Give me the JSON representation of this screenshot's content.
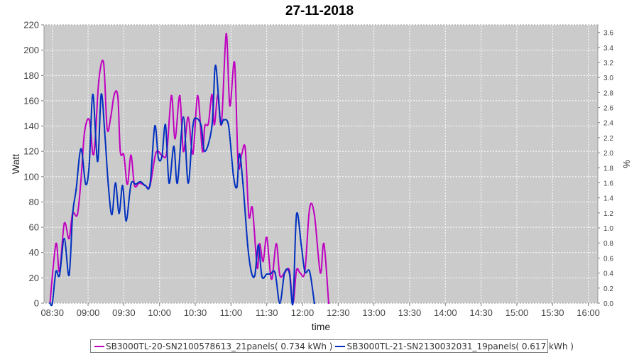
{
  "chart_data": {
    "type": "line",
    "title": "27-11-2018",
    "xlabel": "time",
    "ylabel": "Watt",
    "y2label": "%",
    "ylim": [
      0,
      220
    ],
    "y2lim": [
      0,
      3.7
    ],
    "xlim": [
      "08:23",
      "16:08"
    ],
    "grid": true,
    "plot_background": "#cbcbcb",
    "legend_position": "bottom",
    "x_ticks": [
      "08:30",
      "09:00",
      "09:30",
      "10:00",
      "10:30",
      "11:00",
      "11:30",
      "12:00",
      "12:30",
      "13:00",
      "13:30",
      "14:00",
      "14:30",
      "15:00",
      "15:30",
      "16:00"
    ],
    "y_ticks": [
      0,
      20,
      40,
      60,
      80,
      100,
      120,
      140,
      160,
      180,
      200,
      220
    ],
    "y2_ticks": [
      "0.0",
      "0.2",
      "0.4",
      "0.6",
      "0.8",
      "1.0",
      "1.2",
      "1.4",
      "1.6",
      "1.8",
      "2.0",
      "2.2",
      "2.4",
      "2.6",
      "2.8",
      "3.0",
      "3.2",
      "3.4",
      "3.6"
    ],
    "series": [
      {
        "name": "SB3000TL-20-SN2100578613_21panels( 0.734 kWh )",
        "color": "#c000c0",
        "points": [
          [
            "08:28",
            0
          ],
          [
            "08:33",
            47
          ],
          [
            "08:36",
            25
          ],
          [
            "08:40",
            63
          ],
          [
            "08:44",
            51
          ],
          [
            "08:47",
            71
          ],
          [
            "08:51",
            70
          ],
          [
            "08:54",
            97
          ],
          [
            "08:57",
            135
          ],
          [
            "09:01",
            145
          ],
          [
            "09:04",
            118
          ],
          [
            "09:06",
            129
          ],
          [
            "09:09",
            176
          ],
          [
            "09:13",
            190
          ],
          [
            "09:16",
            138
          ],
          [
            "09:19",
            147
          ],
          [
            "09:22",
            165
          ],
          [
            "09:25",
            163
          ],
          [
            "09:27",
            120
          ],
          [
            "09:30",
            117
          ],
          [
            "09:33",
            94
          ],
          [
            "09:36",
            117
          ],
          [
            "09:39",
            93
          ],
          [
            "09:43",
            95
          ],
          [
            "09:48",
            93
          ],
          [
            "09:52",
            93
          ],
          [
            "09:57",
            119
          ],
          [
            "10:02",
            117
          ],
          [
            "10:06",
            119
          ],
          [
            "10:10",
            164
          ],
          [
            "10:13",
            130
          ],
          [
            "10:17",
            164
          ],
          [
            "10:20",
            120
          ],
          [
            "10:24",
            147
          ],
          [
            "10:28",
            118
          ],
          [
            "10:32",
            164
          ],
          [
            "10:36",
            120
          ],
          [
            "10:38",
            140
          ],
          [
            "10:41",
            142
          ],
          [
            "10:44",
            165
          ],
          [
            "10:46",
            141
          ],
          [
            "10:49",
            165
          ],
          [
            "10:52",
            142
          ],
          [
            "10:56",
            213
          ],
          [
            "10:59",
            156
          ],
          [
            "11:03",
            190
          ],
          [
            "11:06",
            110
          ],
          [
            "11:09",
            118
          ],
          [
            "11:12",
            122
          ],
          [
            "11:15",
            69
          ],
          [
            "11:18",
            75
          ],
          [
            "11:22",
            28
          ],
          [
            "11:24",
            47
          ],
          [
            "11:27",
            33
          ],
          [
            "11:30",
            52
          ],
          [
            "11:34",
            19
          ],
          [
            "11:38",
            47
          ],
          [
            "11:41",
            22
          ],
          [
            "11:45",
            24
          ],
          [
            "11:49",
            26
          ],
          [
            "11:52",
            0
          ],
          [
            "11:55",
            26
          ],
          [
            "11:58",
            24
          ],
          [
            "12:02",
            25
          ],
          [
            "12:06",
            75
          ],
          [
            "12:10",
            70
          ],
          [
            "12:15",
            24
          ],
          [
            "12:18",
            47
          ],
          [
            "12:22",
            0
          ]
        ]
      },
      {
        "name": "SB3000TL-21-SN2130032031_19panels( 0.617 kWh )",
        "color": "#0030c0",
        "points": [
          [
            "08:28",
            0
          ],
          [
            "08:30",
            0
          ],
          [
            "08:33",
            25
          ],
          [
            "08:36",
            22
          ],
          [
            "08:40",
            51
          ],
          [
            "08:44",
            22
          ],
          [
            "08:47",
            70
          ],
          [
            "08:50",
            90
          ],
          [
            "08:54",
            122
          ],
          [
            "08:58",
            94
          ],
          [
            "09:01",
            110
          ],
          [
            "09:04",
            165
          ],
          [
            "09:08",
            112
          ],
          [
            "09:11",
            165
          ],
          [
            "09:14",
            135
          ],
          [
            "09:17",
            93
          ],
          [
            "09:20",
            70
          ],
          [
            "09:23",
            95
          ],
          [
            "09:26",
            71
          ],
          [
            "09:29",
            93
          ],
          [
            "09:32",
            65
          ],
          [
            "09:36",
            94
          ],
          [
            "09:40",
            94
          ],
          [
            "09:44",
            96
          ],
          [
            "09:48",
            93
          ],
          [
            "09:52",
            94
          ],
          [
            "09:56",
            140
          ],
          [
            "09:59",
            115
          ],
          [
            "10:02",
            116
          ],
          [
            "10:05",
            141
          ],
          [
            "10:08",
            95
          ],
          [
            "10:12",
            124
          ],
          [
            "10:15",
            95
          ],
          [
            "10:20",
            147
          ],
          [
            "10:24",
            95
          ],
          [
            "10:28",
            140
          ],
          [
            "10:31",
            146
          ],
          [
            "10:35",
            140
          ],
          [
            "10:38",
            120
          ],
          [
            "10:44",
            140
          ],
          [
            "10:47",
            188
          ],
          [
            "10:51",
            144
          ],
          [
            "10:54",
            145
          ],
          [
            "10:58",
            140
          ],
          [
            "11:02",
            101
          ],
          [
            "11:05",
            92
          ],
          [
            "11:07",
            118
          ],
          [
            "11:10",
            95
          ],
          [
            "11:14",
            46
          ],
          [
            "11:17",
            25
          ],
          [
            "11:20",
            22
          ],
          [
            "11:23",
            46
          ],
          [
            "11:26",
            21
          ],
          [
            "11:30",
            23
          ],
          [
            "11:33",
            23
          ],
          [
            "11:37",
            24
          ],
          [
            "11:41",
            0
          ],
          [
            "11:45",
            24
          ],
          [
            "11:49",
            24
          ],
          [
            "11:52",
            0
          ],
          [
            "11:55",
            70
          ],
          [
            "11:59",
            46
          ],
          [
            "12:02",
            25
          ],
          [
            "12:06",
            25
          ],
          [
            "12:10",
            0
          ]
        ]
      }
    ]
  },
  "legend": {
    "items": [
      {
        "label": "SB3000TL-20-SN2100578613_21panels( 0.734 kWh )",
        "color": "#c000c0"
      },
      {
        "label": "SB3000TL-21-SN2130032031_19panels( 0.617 kWh )",
        "color": "#0030c0"
      }
    ]
  }
}
